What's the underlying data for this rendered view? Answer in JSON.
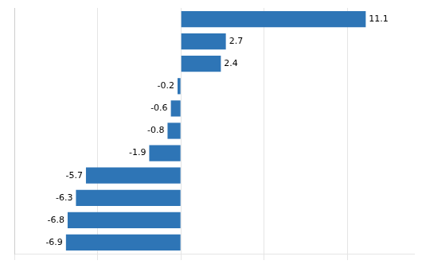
{
  "chart_data": {
    "type": "bar",
    "orientation": "horizontal",
    "categories": [
      null,
      null,
      null,
      null,
      null,
      null,
      null,
      null,
      null,
      null,
      null
    ],
    "values": [
      11.1,
      2.7,
      2.4,
      -0.2,
      -0.6,
      -0.8,
      -1.9,
      -5.7,
      -6.3,
      -6.8,
      -6.9
    ],
    "color": "#2E75B6",
    "xlim": [
      -10,
      14
    ],
    "xticks": [
      -10,
      -5,
      0,
      5,
      10
    ],
    "grid": true,
    "data_labels": true,
    "tick_labels": false
  }
}
